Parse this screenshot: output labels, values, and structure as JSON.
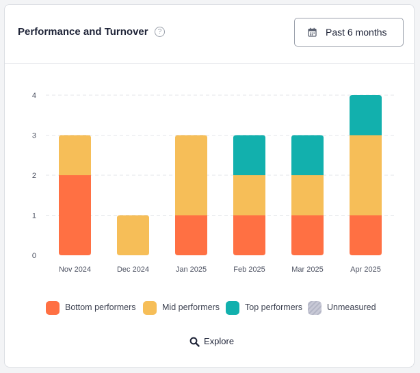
{
  "header": {
    "title": "Performance and Turnover",
    "help_glyph": "?",
    "range_label": "Past 6 months"
  },
  "colors": {
    "bottom": "#ff7043",
    "mid": "#f6be58",
    "top": "#12b0ad",
    "unmeasured": "#c8c9d6",
    "grid": "#e3e5e9",
    "tick": "#4b5060"
  },
  "legend": [
    {
      "label": "Bottom performers",
      "color": "#ff7043"
    },
    {
      "label": "Mid performers",
      "color": "#f6be58"
    },
    {
      "label": "Top performers",
      "color": "#12b0ad"
    },
    {
      "label": "Unmeasured",
      "color": "#c8c9d6"
    }
  ],
  "explore_label": "Explore",
  "chart_data": {
    "type": "bar",
    "stacked": true,
    "categories": [
      "Nov 2024",
      "Dec 2024",
      "Jan 2025",
      "Feb 2025",
      "Mar 2025",
      "Apr 2025"
    ],
    "series": [
      {
        "name": "Bottom performers",
        "values": [
          2,
          0,
          1,
          1,
          1,
          1
        ]
      },
      {
        "name": "Mid performers",
        "values": [
          1,
          1,
          2,
          1,
          1,
          2
        ]
      },
      {
        "name": "Top performers",
        "values": [
          0,
          0,
          0,
          1,
          1,
          1
        ]
      },
      {
        "name": "Unmeasured",
        "values": [
          0,
          0,
          0,
          0,
          0,
          0
        ]
      }
    ],
    "ylim": [
      0,
      4
    ],
    "yticks": [
      0,
      1,
      2,
      3,
      4
    ],
    "grid": true,
    "legend_position": "bottom"
  }
}
